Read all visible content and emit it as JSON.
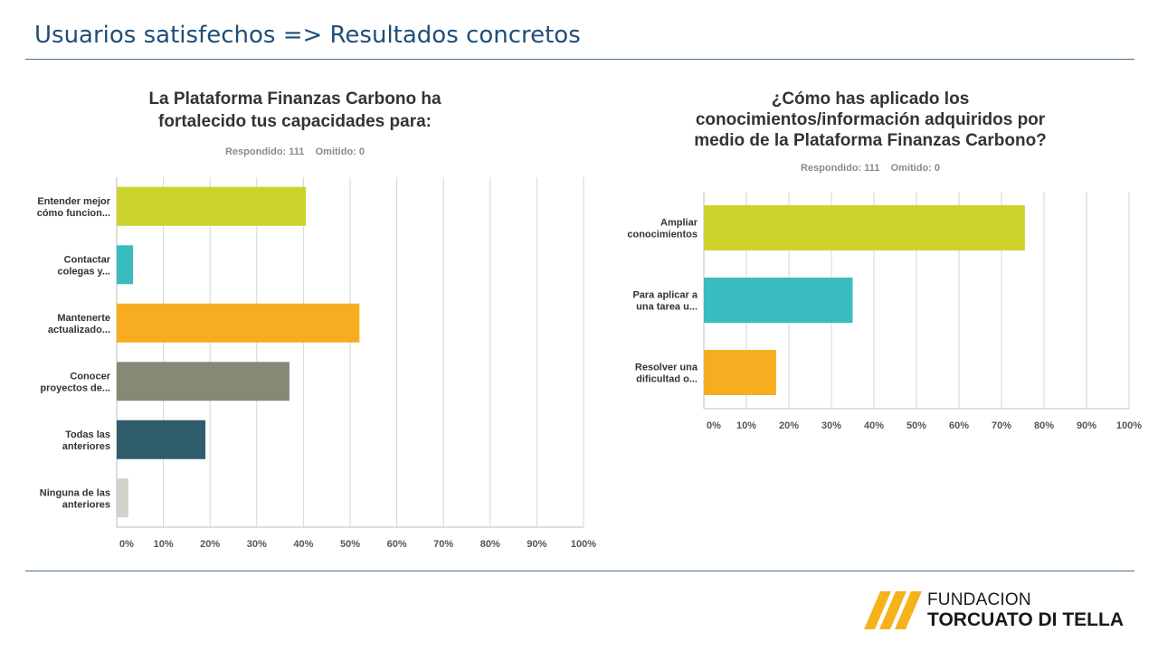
{
  "slide": {
    "title": "Usuarios satisfechos => Resultados concretos",
    "accent_color": "#1f4e79"
  },
  "chart_data": [
    {
      "type": "bar",
      "orientation": "horizontal",
      "title": "La Plataforma Finanzas Carbono ha fortalecido tus capacidades para:",
      "title_lines": [
        "La Plataforma Finanzas Carbono ha",
        "fortalecido tus capacidades para:"
      ],
      "subtitle": "Respondido: 111    Omitido: 0",
      "categories": [
        [
          "Entender mejor",
          "cómo funcion..."
        ],
        [
          "Contactar",
          "colegas y..."
        ],
        [
          "Mantenerte",
          "actualizado..."
        ],
        [
          "Conocer",
          "proyectos de..."
        ],
        [
          "Todas las",
          "anteriores"
        ],
        [
          "Ninguna de las",
          "anteriores"
        ]
      ],
      "values": [
        40.5,
        3.5,
        52,
        37,
        19,
        2.5
      ],
      "colors": [
        "#cbd32b",
        "#38bcc0",
        "#f6ae20",
        "#888877",
        "#2e5c6b",
        "#d3d2ca"
      ],
      "xlim": [
        0,
        100
      ],
      "x_ticks": [
        "0%",
        "10%",
        "20%",
        "30%",
        "40%",
        "50%",
        "60%",
        "70%",
        "80%",
        "90%",
        "100%"
      ],
      "grid": true
    },
    {
      "type": "bar",
      "orientation": "horizontal",
      "title": "¿Cómo has aplicado los conocimientos/información adquiridos por medio de la Plataforma Finanzas Carbono?",
      "title_lines": [
        "¿Cómo has aplicado los",
        "conocimientos/información adquiridos por",
        "medio de la Plataforma Finanzas Carbono?"
      ],
      "subtitle": "Respondido: 111    Omitido: 0",
      "categories": [
        [
          "Ampliar",
          "conocimientos"
        ],
        [
          "Para aplicar a",
          "una tarea u..."
        ],
        [
          "Resolver una",
          "dificultad o..."
        ]
      ],
      "values": [
        75.5,
        35,
        17
      ],
      "colors": [
        "#cbd32b",
        "#38bcc0",
        "#f6ae20"
      ],
      "xlim": [
        0,
        100
      ],
      "x_ticks": [
        "0%",
        "10%",
        "20%",
        "30%",
        "40%",
        "50%",
        "60%",
        "70%",
        "80%",
        "90%",
        "100%"
      ],
      "grid": true
    }
  ],
  "logo": {
    "line1": "FUNDACION",
    "line2": "TORCUATO DI TELLA",
    "mark_color": "#f6b21b"
  }
}
